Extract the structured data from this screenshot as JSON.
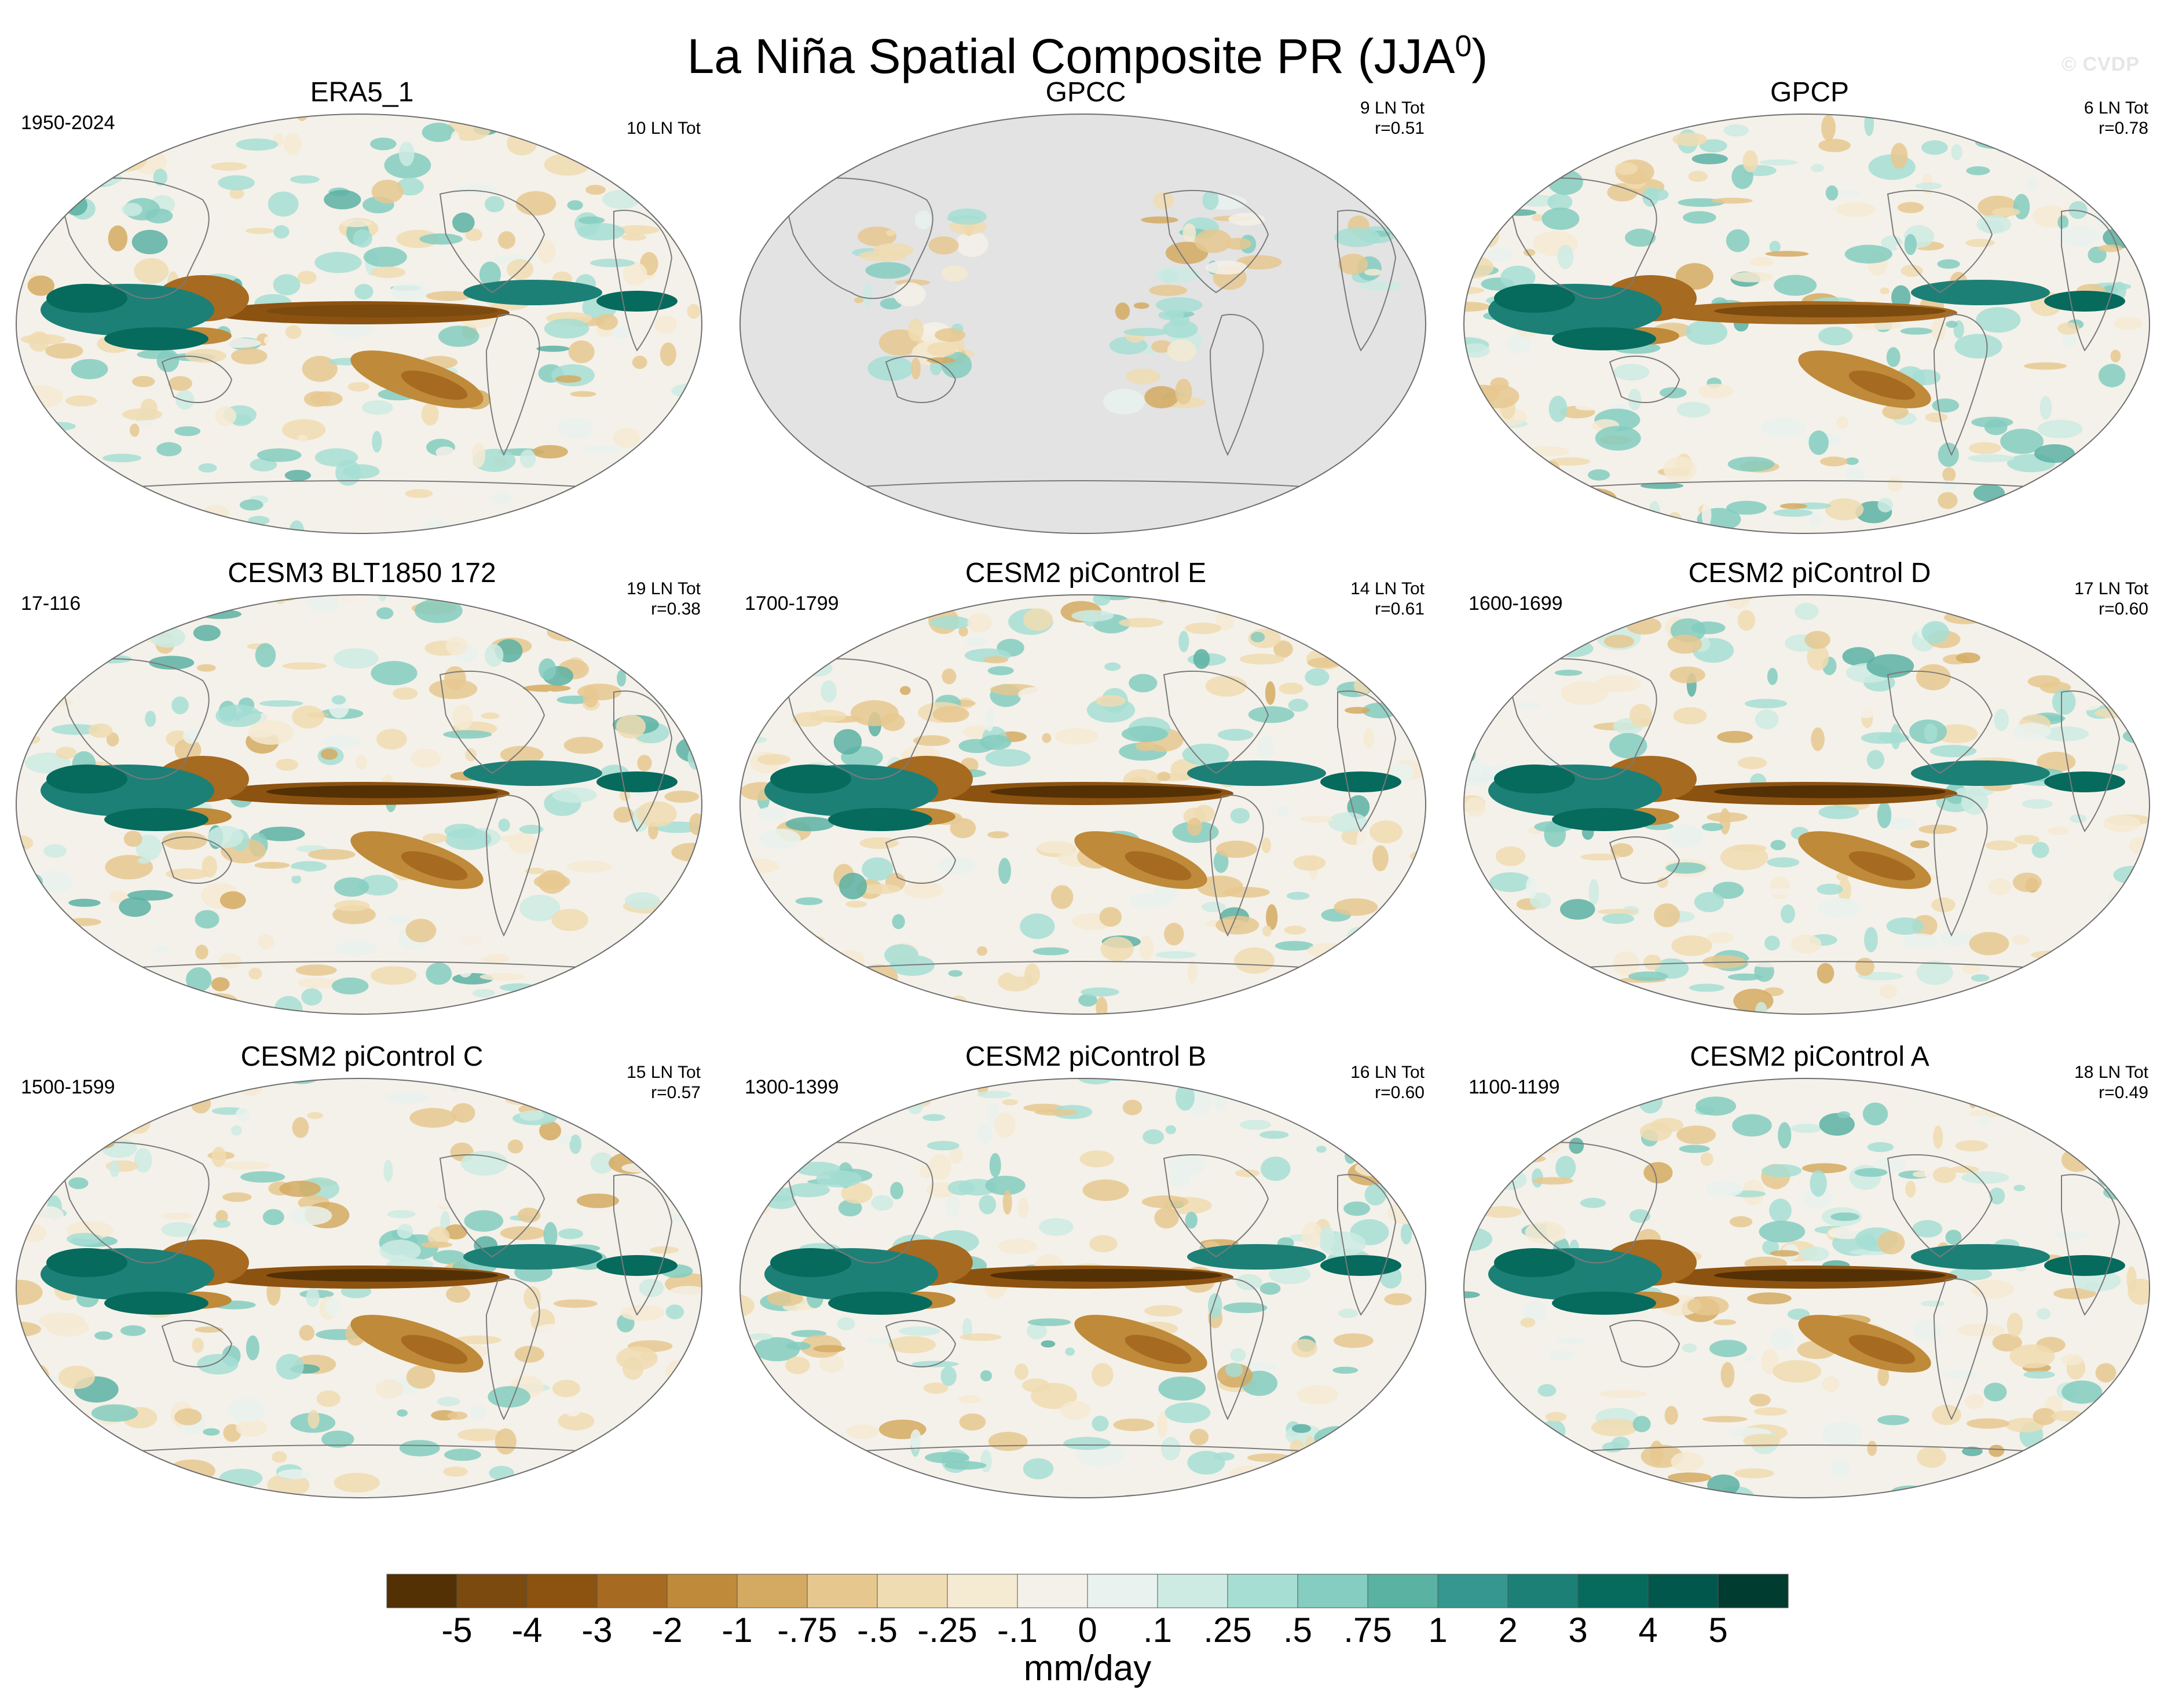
{
  "figure": {
    "title_main": "La Niña Spatial Composite PR (JJA",
    "title_sup": "0",
    "title_close": ")",
    "watermark": "© CVDP"
  },
  "panels": [
    {
      "title": "ERA5_1",
      "period": "1950-2024",
      "events": "10 LN Tot",
      "corr": ""
    },
    {
      "title": "GPCC",
      "period": "",
      "events": "9 LN Tot",
      "corr": "r=0.51"
    },
    {
      "title": "GPCP",
      "period": "",
      "events": "6 LN Tot",
      "corr": "r=0.78"
    },
    {
      "title": "CESM3 BLT1850 172",
      "period": "17-116",
      "events": "19 LN Tot",
      "corr": "r=0.38"
    },
    {
      "title": "CESM2 piControl E",
      "period": "1700-1799",
      "events": "14 LN Tot",
      "corr": "r=0.61"
    },
    {
      "title": "CESM2 piControl D",
      "period": "1600-1699",
      "events": "17 LN Tot",
      "corr": "r=0.60"
    },
    {
      "title": "CESM2 piControl C",
      "period": "1500-1599",
      "events": "15 LN Tot",
      "corr": "r=0.57"
    },
    {
      "title": "CESM2 piControl B",
      "period": "1300-1399",
      "events": "16 LN Tot",
      "corr": "r=0.60"
    },
    {
      "title": "CESM2 piControl A",
      "period": "1100-1199",
      "events": "18 LN Tot",
      "corr": "r=0.49"
    }
  ],
  "chart_data": {
    "type": "heatmap",
    "title": "La Niña Spatial Composite PR (JJA0)",
    "variable": "PR",
    "season": "JJA",
    "units": "mm/day",
    "projection": "Robinson (Pacific-centered)",
    "colorbar": {
      "units": "mm/day",
      "tick_labels": [
        "-5",
        "-4",
        "-3",
        "-2",
        "-1",
        "-.75",
        "-.5",
        "-.25",
        "-.1",
        "0",
        ".1",
        ".25",
        ".5",
        ".75",
        "1",
        "2",
        "3",
        "4",
        "5"
      ],
      "levels": [
        -5,
        -4,
        -3,
        -2,
        -1,
        -0.75,
        -0.5,
        -0.25,
        -0.1,
        0,
        0.1,
        0.25,
        0.5,
        0.75,
        1,
        2,
        3,
        4,
        5
      ],
      "colors": [
        "#543005",
        "#7a4a0f",
        "#8c5210",
        "#a66a20",
        "#bf8a3a",
        "#d4aa62",
        "#e6c88f",
        "#f0dcb2",
        "#f5ead2",
        "#f4f1ea",
        "#e9f2ef",
        "#cdebe3",
        "#a6ded3",
        "#84cdc0",
        "#5ab2a3",
        "#35978f",
        "#1c8077",
        "#066a5d",
        "#01574b",
        "#003c30"
      ]
    },
    "series": [
      {
        "name": "ERA5_1",
        "period": "1950-2024",
        "la_nina_events": 10,
        "pattern_correlation": null
      },
      {
        "name": "GPCC",
        "la_nina_events": 9,
        "pattern_correlation": 0.51
      },
      {
        "name": "GPCP",
        "la_nina_events": 6,
        "pattern_correlation": 0.78
      },
      {
        "name": "CESM3 BLT1850 172",
        "period": "17-116",
        "la_nina_events": 19,
        "pattern_correlation": 0.38
      },
      {
        "name": "CESM2 piControl E",
        "period": "1700-1799",
        "la_nina_events": 14,
        "pattern_correlation": 0.61
      },
      {
        "name": "CESM2 piControl D",
        "period": "1600-1699",
        "la_nina_events": 17,
        "pattern_correlation": 0.6
      },
      {
        "name": "CESM2 piControl C",
        "period": "1500-1599",
        "la_nina_events": 15,
        "pattern_correlation": 0.57
      },
      {
        "name": "CESM2 piControl B",
        "period": "1300-1399",
        "la_nina_events": 16,
        "pattern_correlation": 0.6
      },
      {
        "name": "CESM2 piControl A",
        "period": "1100-1199",
        "la_nina_events": 18,
        "pattern_correlation": 0.49
      }
    ]
  }
}
